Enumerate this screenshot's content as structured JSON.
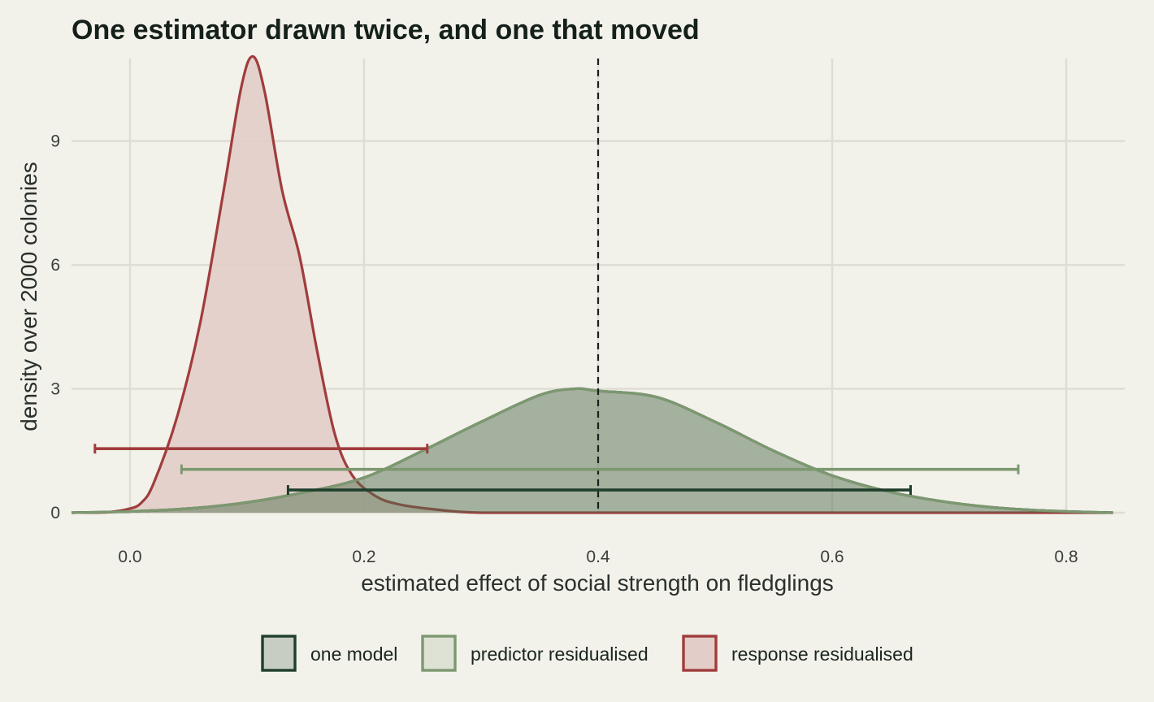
{
  "chart_data": {
    "type": "area",
    "title": "One estimator drawn twice, and one that moved",
    "xlabel": "estimated effect of social strength on fledglings",
    "ylabel": "density over 2000 colonies",
    "xlim": [
      -0.05,
      0.85
    ],
    "ylim": [
      0,
      11
    ],
    "x_ticks": [
      0.0,
      0.2,
      0.4,
      0.6,
      0.8
    ],
    "x_tick_labels": [
      "0.0",
      "0.2",
      "0.4",
      "0.6",
      "0.8"
    ],
    "y_ticks": [
      0,
      3,
      6,
      9
    ],
    "y_tick_labels": [
      "0",
      "3",
      "6",
      "9"
    ],
    "grid": true,
    "legend_position": "bottom",
    "reference_line": {
      "x": 0.4,
      "style": "dashed"
    },
    "series": [
      {
        "name": "one model",
        "color": "#1f3f2c",
        "fill": "#c7cdc1",
        "x": [
          -0.05,
          0.0,
          0.05,
          0.1,
          0.15,
          0.2,
          0.25,
          0.3,
          0.35,
          0.38,
          0.4,
          0.45,
          0.5,
          0.55,
          0.6,
          0.65,
          0.7,
          0.75,
          0.8,
          0.84
        ],
        "density": [
          0.0,
          0.03,
          0.1,
          0.25,
          0.5,
          0.85,
          1.5,
          2.2,
          2.85,
          3.0,
          2.95,
          2.8,
          2.2,
          1.5,
          0.9,
          0.5,
          0.25,
          0.1,
          0.03,
          0.0
        ],
        "interval": [
          0.135,
          0.667
        ]
      },
      {
        "name": "predictor residualised",
        "color": "#7d9870",
        "fill": "#dde2d4",
        "x": [
          -0.05,
          0.0,
          0.05,
          0.1,
          0.15,
          0.2,
          0.25,
          0.3,
          0.35,
          0.38,
          0.4,
          0.45,
          0.5,
          0.55,
          0.6,
          0.65,
          0.7,
          0.75,
          0.8,
          0.84
        ],
        "density": [
          0.0,
          0.03,
          0.1,
          0.25,
          0.5,
          0.85,
          1.5,
          2.2,
          2.85,
          3.0,
          2.95,
          2.8,
          2.2,
          1.5,
          0.9,
          0.5,
          0.25,
          0.1,
          0.03,
          0.0
        ],
        "interval": [
          0.044,
          0.759
        ]
      },
      {
        "name": "response residualised",
        "color": "#a03c3c",
        "fill": "#e2cdc8",
        "x": [
          -0.05,
          -0.02,
          0.0,
          0.01,
          0.02,
          0.04,
          0.06,
          0.08,
          0.095,
          0.105,
          0.115,
          0.13,
          0.145,
          0.16,
          0.175,
          0.19,
          0.21,
          0.23,
          0.26,
          0.3,
          0.4,
          0.6,
          0.84
        ],
        "density": [
          0.0,
          0.01,
          0.1,
          0.25,
          0.7,
          2.3,
          4.6,
          7.8,
          10.3,
          11.05,
          10.2,
          7.8,
          6.2,
          3.9,
          1.9,
          0.9,
          0.4,
          0.2,
          0.08,
          0.0,
          0.0,
          0.0,
          0.0
        ],
        "interval": [
          -0.03,
          0.254
        ]
      }
    ],
    "interval_y": [
      0.55,
      1.05,
      1.55
    ]
  }
}
